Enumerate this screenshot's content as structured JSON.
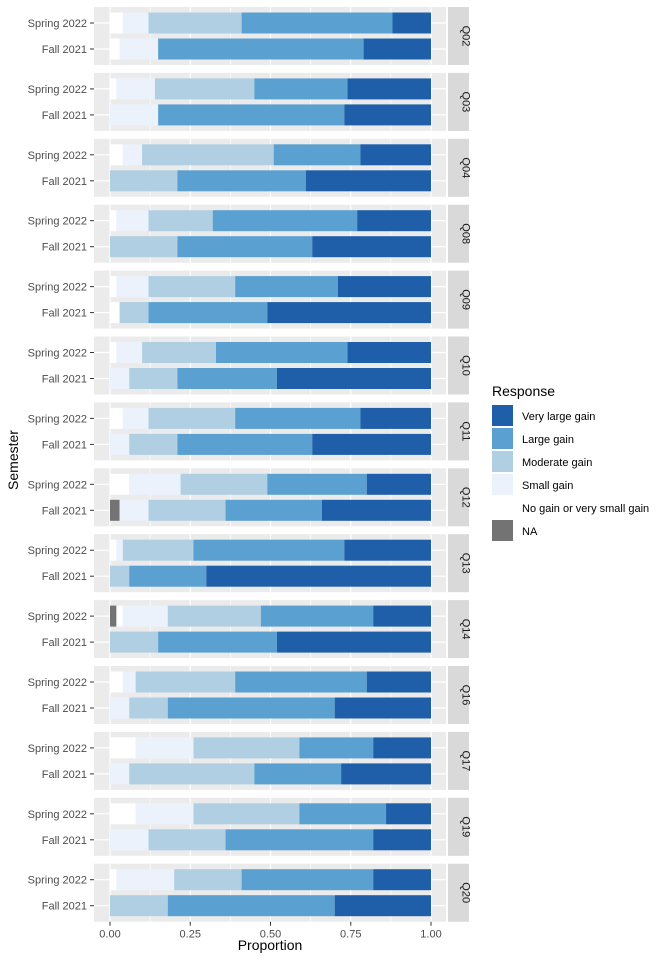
{
  "chart_data": {
    "type": "bar",
    "orientation": "horizontal",
    "stacked": true,
    "faceted": true,
    "xlabel": "Proportion",
    "ylabel": "Semester",
    "xlim": [
      0,
      1
    ],
    "x_ticks": [
      "0.00",
      "0.25",
      "0.50",
      "0.75",
      "1.00"
    ],
    "semesters": [
      "Spring 2022",
      "Fall 2021"
    ],
    "legend": {
      "title": "Response",
      "position": "right",
      "items": [
        {
          "label": "Very large gain",
          "color": "#1f5fa9"
        },
        {
          "label": "Large gain",
          "color": "#5aa0d0"
        },
        {
          "label": "Moderate gain",
          "color": "#b0cfe3"
        },
        {
          "label": "Small gain",
          "color": "#ebf2fc"
        },
        {
          "label": "No gain or very small gain",
          "color": "#ffffff"
        },
        {
          "label": "NA",
          "color": "#737373"
        }
      ]
    },
    "stack_order": [
      "NA",
      "No gain or very small gain",
      "Small gain",
      "Moderate gain",
      "Large gain",
      "Very large gain"
    ],
    "facets": [
      {
        "label": "Q02",
        "rows": [
          {
            "semester": "Spring 2022",
            "values": [
              0,
              0.04,
              0.08,
              0.29,
              0.47,
              0.12
            ]
          },
          {
            "semester": "Fall 2021",
            "values": [
              0,
              0.03,
              0.12,
              0,
              0.64,
              0.21
            ]
          }
        ]
      },
      {
        "label": "Q03",
        "rows": [
          {
            "semester": "Spring 2022",
            "values": [
              0,
              0.02,
              0.12,
              0.31,
              0.29,
              0.26
            ]
          },
          {
            "semester": "Fall 2021",
            "values": [
              0,
              0,
              0.15,
              0,
              0.58,
              0.27
            ]
          }
        ]
      },
      {
        "label": "Q04",
        "rows": [
          {
            "semester": "Spring 2022",
            "values": [
              0,
              0.04,
              0.06,
              0.41,
              0.27,
              0.22
            ]
          },
          {
            "semester": "Fall 2021",
            "values": [
              0,
              0,
              0,
              0.21,
              0.4,
              0.39
            ]
          }
        ]
      },
      {
        "label": "Q08",
        "rows": [
          {
            "semester": "Spring 2022",
            "values": [
              0,
              0.02,
              0.1,
              0.2,
              0.45,
              0.23
            ]
          },
          {
            "semester": "Fall 2021",
            "values": [
              0,
              0,
              0,
              0.21,
              0.42,
              0.37
            ]
          }
        ]
      },
      {
        "label": "Q09",
        "rows": [
          {
            "semester": "Spring 2022",
            "values": [
              0,
              0.02,
              0.1,
              0.27,
              0.32,
              0.29
            ]
          },
          {
            "semester": "Fall 2021",
            "values": [
              0,
              0.03,
              0,
              0.09,
              0.37,
              0.51
            ]
          }
        ]
      },
      {
        "label": "Q10",
        "rows": [
          {
            "semester": "Spring 2022",
            "values": [
              0,
              0.02,
              0.08,
              0.23,
              0.41,
              0.26
            ]
          },
          {
            "semester": "Fall 2021",
            "values": [
              0,
              0,
              0.06,
              0.15,
              0.31,
              0.48
            ]
          }
        ]
      },
      {
        "label": "Q11",
        "rows": [
          {
            "semester": "Spring 2022",
            "values": [
              0,
              0.04,
              0.08,
              0.27,
              0.39,
              0.22
            ]
          },
          {
            "semester": "Fall 2021",
            "values": [
              0,
              0,
              0.06,
              0.15,
              0.42,
              0.37
            ]
          }
        ]
      },
      {
        "label": "Q12",
        "rows": [
          {
            "semester": "Spring 2022",
            "values": [
              0,
              0.06,
              0.16,
              0.27,
              0.31,
              0.2
            ]
          },
          {
            "semester": "Fall 2021",
            "values": [
              0.03,
              0,
              0.09,
              0.24,
              0.3,
              0.34
            ]
          }
        ]
      },
      {
        "label": "Q13",
        "rows": [
          {
            "semester": "Spring 2022",
            "values": [
              0,
              0.02,
              0.02,
              0.22,
              0.47,
              0.27
            ]
          },
          {
            "semester": "Fall 2021",
            "values": [
              0,
              0,
              0,
              0.06,
              0.24,
              0.7
            ]
          }
        ]
      },
      {
        "label": "Q14",
        "rows": [
          {
            "semester": "Spring 2022",
            "values": [
              0.02,
              0.02,
              0.14,
              0.29,
              0.35,
              0.18
            ]
          },
          {
            "semester": "Fall 2021",
            "values": [
              0,
              0,
              0,
              0.15,
              0.37,
              0.48
            ]
          }
        ]
      },
      {
        "label": "Q16",
        "rows": [
          {
            "semester": "Spring 2022",
            "values": [
              0,
              0.04,
              0.04,
              0.31,
              0.41,
              0.2
            ]
          },
          {
            "semester": "Fall 2021",
            "values": [
              0,
              0,
              0.06,
              0.12,
              0.52,
              0.3
            ]
          }
        ]
      },
      {
        "label": "Q17",
        "rows": [
          {
            "semester": "Spring 2022",
            "values": [
              0,
              0.08,
              0.18,
              0.33,
              0.23,
              0.18
            ]
          },
          {
            "semester": "Fall 2021",
            "values": [
              0,
              0,
              0.06,
              0.39,
              0.27,
              0.28
            ]
          }
        ]
      },
      {
        "label": "Q19",
        "rows": [
          {
            "semester": "Spring 2022",
            "values": [
              0,
              0.08,
              0.18,
              0.33,
              0.27,
              0.14
            ]
          },
          {
            "semester": "Fall 2021",
            "values": [
              0,
              0,
              0.12,
              0.24,
              0.46,
              0.18
            ]
          }
        ]
      },
      {
        "label": "Q20",
        "rows": [
          {
            "semester": "Spring 2022",
            "values": [
              0,
              0.02,
              0.18,
              0.21,
              0.41,
              0.18
            ]
          },
          {
            "semester": "Fall 2021",
            "values": [
              0,
              0,
              0,
              0.18,
              0.52,
              0.3
            ]
          }
        ]
      }
    ]
  }
}
